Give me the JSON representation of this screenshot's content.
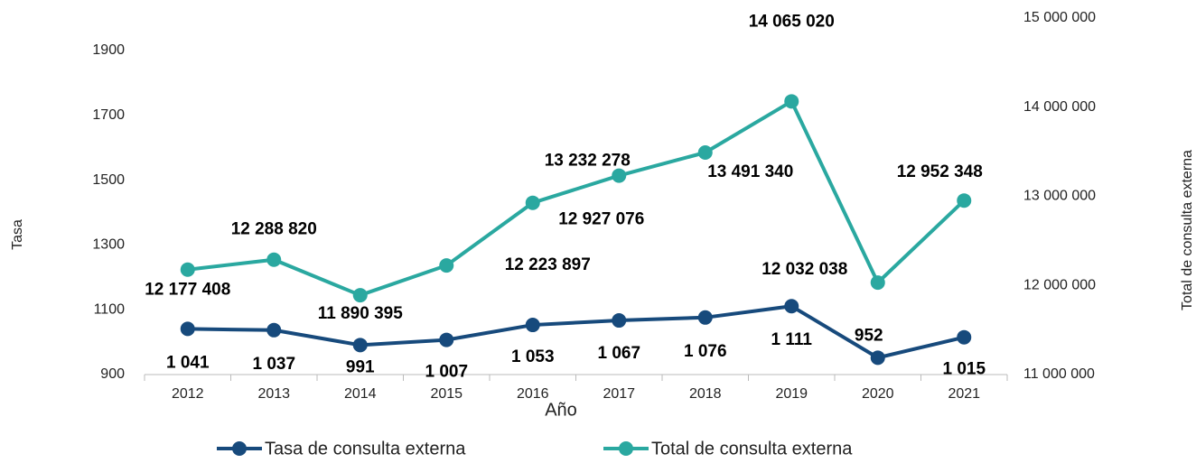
{
  "chart_data": {
    "type": "line",
    "x_label": "Año",
    "y_label": "Tasa",
    "y2_label": "Total de  consulta externa",
    "categories": [
      "2012",
      "2013",
      "2014",
      "2015",
      "2016",
      "2017",
      "2018",
      "2019",
      "2020",
      "2021"
    ],
    "ylim": [
      900,
      2000
    ],
    "yticks": [
      900,
      1100,
      1300,
      1500,
      1700,
      1900
    ],
    "y2lim": [
      11000000,
      15000000
    ],
    "y2ticks": [
      {
        "value": 11000000,
        "label": "11 000 000"
      },
      {
        "value": 12000000,
        "label": "12 000 000"
      },
      {
        "value": 13000000,
        "label": "13 000 000"
      },
      {
        "value": 14000000,
        "label": "14 000 000"
      },
      {
        "value": 15000000,
        "label": "15 000 000"
      }
    ],
    "series": [
      {
        "name": "Tasa de consulta externa",
        "color": "#174a7c",
        "values": [
          1041,
          1037,
          991,
          1007,
          1053,
          1067,
          1076,
          1111,
          952,
          1015
        ],
        "value_labels": [
          "1 041",
          "1 037",
          "991",
          "1 007",
          "1 053",
          "1 067",
          "1 076",
          "1 111",
          "952",
          "1 015"
        ]
      },
      {
        "name": "Total de consulta externa",
        "color": "#2aa8a0",
        "axis": "y2",
        "values": [
          12177408,
          12288820,
          11890395,
          12223897,
          12927076,
          13232278,
          13491340,
          14065020,
          12032038,
          12952348
        ],
        "value_labels": [
          "12 177 408",
          "12 288 820",
          "11 890 395",
          "12 223 897",
          "12 927 076",
          "13 232 278",
          "13 491 340",
          "14 065 020",
          "12 032 038",
          "12 952 348"
        ]
      }
    ]
  }
}
